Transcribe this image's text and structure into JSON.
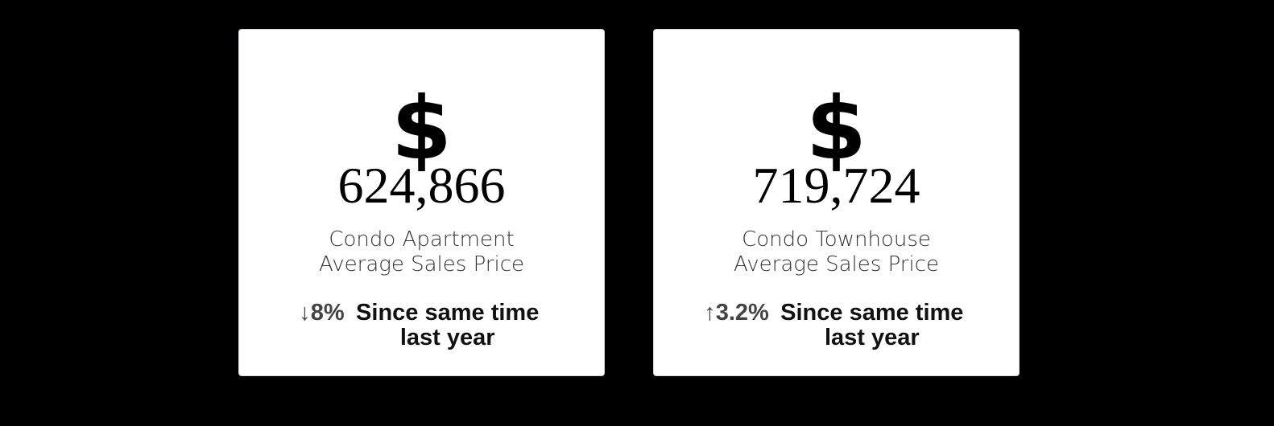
{
  "cards": [
    {
      "icon": "$",
      "value": "624,866",
      "label": [
        "Condo Apartment",
        "Average Sales Price"
      ],
      "change": "↓8%",
      "change_text": "Since same time last year"
    },
    {
      "icon": "$",
      "value": "719,724",
      "label": [
        "Condo Townhouse",
        "Average Sales Price"
      ],
      "change": "↑3.2%",
      "change_text": "Since same time last year"
    }
  ]
}
